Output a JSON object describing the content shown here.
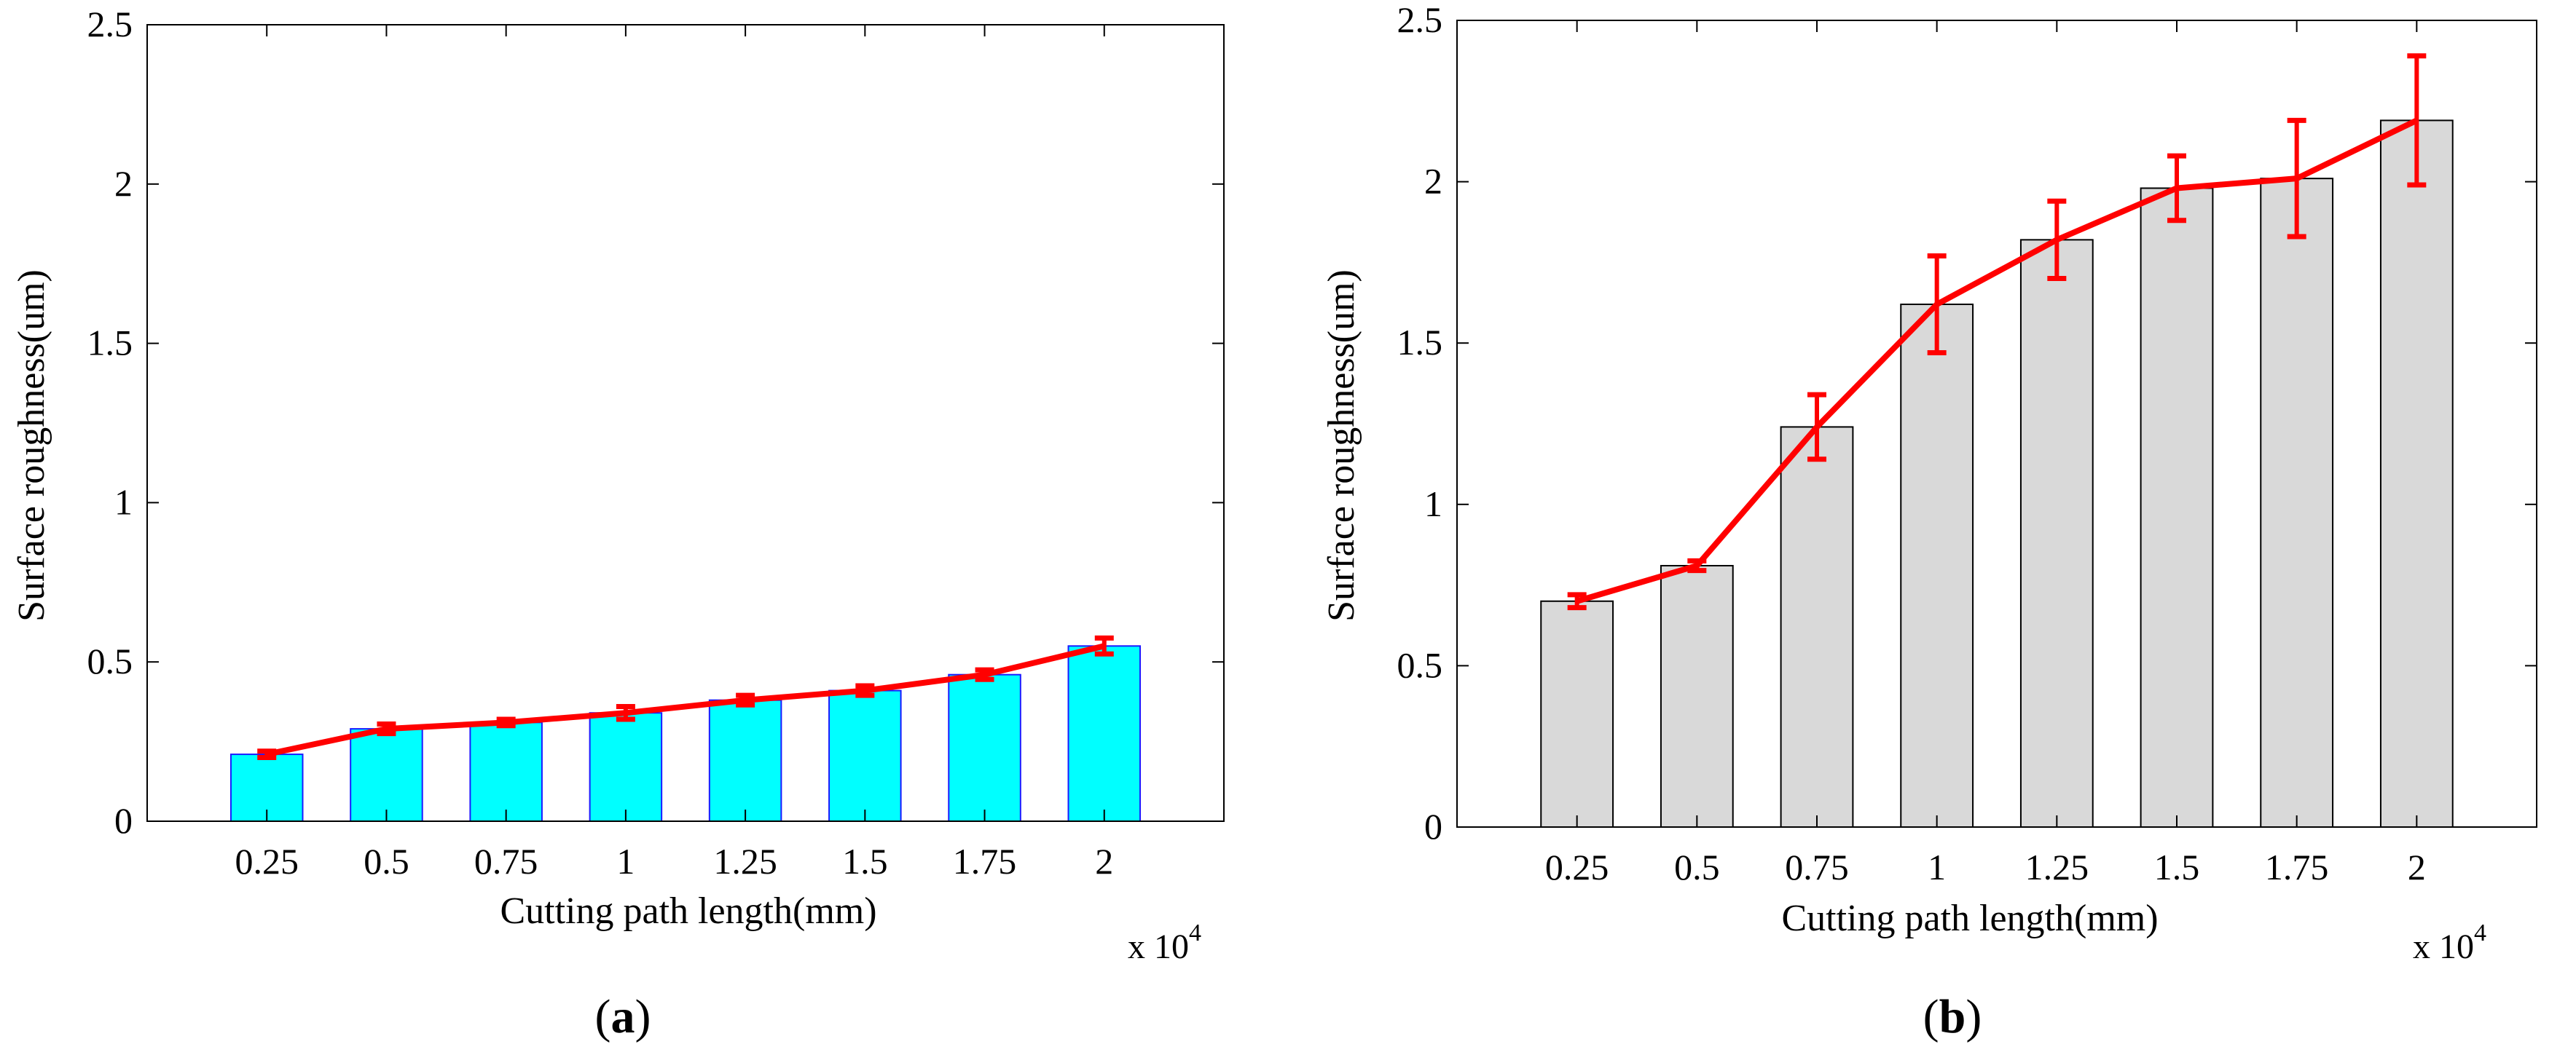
{
  "figure": {
    "panel_labels": [
      {
        "open": "(",
        "letter": "a",
        "close": ")"
      },
      {
        "open": "(",
        "letter": "b",
        "close": ")"
      }
    ]
  },
  "chart_data": [
    {
      "type": "bar",
      "panel": "a",
      "title": "",
      "xlabel": "Cutting path length(mm)",
      "ylabel": "Surface roughness(um)",
      "x_multiplier": {
        "base": "x 10",
        "exponent": "4"
      },
      "categories": [
        "0.25",
        "0.5",
        "0.75",
        "1",
        "1.25",
        "1.5",
        "1.75",
        "2"
      ],
      "ylim": [
        0,
        2.5
      ],
      "yticks": [
        "0",
        "0.5",
        "1",
        "1.5",
        "2",
        "2.5"
      ],
      "grid": false,
      "bar_color": "#00ffff",
      "bar_edge_color": "#1a1aff",
      "line_color": "#ff0000",
      "series": [
        {
          "name": "bars",
          "values": [
            0.21,
            0.29,
            0.31,
            0.34,
            0.38,
            0.41,
            0.46,
            0.55
          ]
        },
        {
          "name": "line",
          "values": [
            0.21,
            0.29,
            0.31,
            0.34,
            0.38,
            0.41,
            0.46,
            0.55
          ],
          "errors": [
            0.01,
            0.015,
            0.01,
            0.02,
            0.015,
            0.015,
            0.015,
            0.025
          ]
        }
      ]
    },
    {
      "type": "bar",
      "panel": "b",
      "title": "",
      "xlabel": "Cutting path length(mm)",
      "ylabel": "Surface roughness(um)",
      "x_multiplier": {
        "base": "x 10",
        "exponent": "4"
      },
      "categories": [
        "0.25",
        "0.5",
        "0.75",
        "1",
        "1.25",
        "1.5",
        "1.75",
        "2"
      ],
      "ylim": [
        0,
        2.5
      ],
      "yticks": [
        "0",
        "0.5",
        "1",
        "1.5",
        "2",
        "2.5"
      ],
      "grid": false,
      "bar_color": "#d9d9d9",
      "bar_edge_color": "#000000",
      "line_color": "#ff0000",
      "series": [
        {
          "name": "bars",
          "values": [
            0.7,
            0.81,
            1.24,
            1.62,
            1.82,
            1.98,
            2.01,
            2.19
          ]
        },
        {
          "name": "line",
          "values": [
            0.7,
            0.81,
            1.24,
            1.62,
            1.82,
            1.98,
            2.01,
            2.19
          ],
          "errors": [
            0.02,
            0.015,
            0.1,
            0.15,
            0.12,
            0.1,
            0.18,
            0.2
          ]
        }
      ]
    }
  ]
}
